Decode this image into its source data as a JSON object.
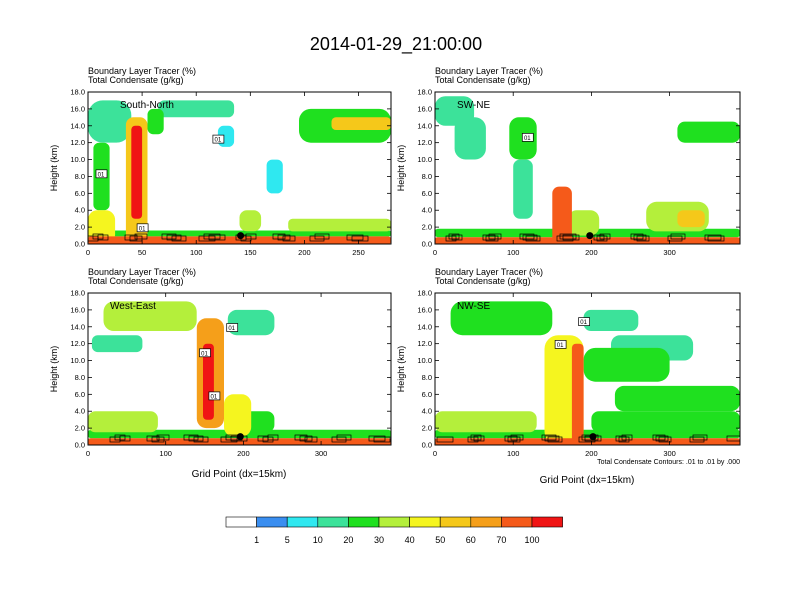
{
  "figure": {
    "title": "2014-01-29_21:00:00",
    "footnote": "Total Condensate Contours: .01 to .01 by .000"
  },
  "colors": {
    "blue": "#3a8ef0",
    "cyan": "#2fe8f0",
    "green_light": "#3ce29a",
    "green": "#1fe01f",
    "yellow_green": "#b4ef3b",
    "yellow": "#f5f51f",
    "gold": "#f5c81a",
    "orange": "#f59f1a",
    "red_orange": "#f55a1a",
    "red": "#f01414",
    "contour": "#000000",
    "marker": "#000000"
  },
  "chart_data": [
    {
      "type": "heatmap",
      "panel": "top-left",
      "label": "South-North",
      "title_line1": "Boundary Layer Tracer   (%)",
      "title_line2": "Total Condensate   (g/kg)",
      "ylabel": "Height (km)",
      "xlabel": "",
      "xlim": [
        0,
        280
      ],
      "ylim": [
        0,
        18
      ],
      "xticks": [
        0,
        50,
        100,
        150,
        200,
        250
      ],
      "xtick_labels": [
        "0",
        "50",
        "100",
        "150",
        "200",
        "250"
      ],
      "yticks": [
        0,
        2,
        4,
        6,
        8,
        10,
        12,
        14,
        16,
        18
      ],
      "ytick_labels": [
        "0.0",
        "2.0",
        "4.0",
        "6.0",
        "8.0",
        "10.0",
        "12.0",
        "14.0",
        "16.0",
        "18.0"
      ],
      "contour_labels": [
        {
          "text": "01",
          "x": 12,
          "y": 8.2
        },
        {
          "text": "01",
          "x": 50,
          "y": 1.8
        },
        {
          "text": "01",
          "x": 120,
          "y": 12.3
        }
      ],
      "marker": {
        "x": 141,
        "y": 1.0
      },
      "features": [
        {
          "x": [
            0,
            280
          ],
          "y": [
            0,
            0.9
          ],
          "value": 70
        },
        {
          "x": [
            0,
            280
          ],
          "y": [
            0.9,
            1.6
          ],
          "value": 20
        },
        {
          "x": [
            0,
            25
          ],
          "y": [
            0,
            4
          ],
          "value": 40
        },
        {
          "x": [
            5,
            20
          ],
          "y": [
            4,
            12
          ],
          "value": 20
        },
        {
          "x": [
            0,
            40
          ],
          "y": [
            12,
            17
          ],
          "value": 10
        },
        {
          "x": [
            35,
            55
          ],
          "y": [
            0,
            15
          ],
          "value": 50
        },
        {
          "x": [
            40,
            50
          ],
          "y": [
            3,
            14
          ],
          "value": 80
        },
        {
          "x": [
            55,
            70
          ],
          "y": [
            13,
            16
          ],
          "value": 20
        },
        {
          "x": [
            65,
            135
          ],
          "y": [
            15,
            17
          ],
          "value": 10
        },
        {
          "x": [
            120,
            135
          ],
          "y": [
            11.5,
            14
          ],
          "value": 5
        },
        {
          "x": [
            140,
            160
          ],
          "y": [
            1.5,
            4
          ],
          "value": 30
        },
        {
          "x": [
            165,
            180
          ],
          "y": [
            6,
            10
          ],
          "value": 5
        },
        {
          "x": [
            185,
            280
          ],
          "y": [
            1.5,
            3
          ],
          "value": 30
        },
        {
          "x": [
            195,
            280
          ],
          "y": [
            12,
            16
          ],
          "value": 20
        },
        {
          "x": [
            225,
            280
          ],
          "y": [
            13.5,
            15
          ],
          "value": 50
        }
      ]
    },
    {
      "type": "heatmap",
      "panel": "top-right",
      "label": "SW-NE",
      "title_line1": "Boundary Layer Tracer   (%)",
      "title_line2": "Total Condensate   (g/kg)",
      "ylabel": "Height (km)",
      "xlabel": "",
      "xlim": [
        0,
        390
      ],
      "ylim": [
        0,
        18
      ],
      "xticks": [
        0,
        100,
        200,
        300
      ],
      "xtick_labels": [
        "0",
        "100",
        "200",
        "300"
      ],
      "yticks": [
        0,
        2,
        4,
        6,
        8,
        10,
        12,
        14,
        16,
        18
      ],
      "ytick_labels": [
        "0.0",
        "2.0",
        "4.0",
        "6.0",
        "8.0",
        "10.0",
        "12.0",
        "14.0",
        "16.0",
        "18.0"
      ],
      "contour_labels": [
        {
          "text": "01",
          "x": 118,
          "y": 12.5
        }
      ],
      "marker": {
        "x": 198,
        "y": 1.0
      },
      "features": [
        {
          "x": [
            0,
            390
          ],
          "y": [
            0,
            0.8
          ],
          "value": 70
        },
        {
          "x": [
            0,
            390
          ],
          "y": [
            0.8,
            1.8
          ],
          "value": 20
        },
        {
          "x": [
            0,
            50
          ],
          "y": [
            14,
            17.5
          ],
          "value": 10
        },
        {
          "x": [
            25,
            65
          ],
          "y": [
            10,
            15
          ],
          "value": 10
        },
        {
          "x": [
            95,
            130
          ],
          "y": [
            10,
            15
          ],
          "value": 20
        },
        {
          "x": [
            100,
            125
          ],
          "y": [
            3,
            10
          ],
          "value": 10
        },
        {
          "x": [
            150,
            175
          ],
          "y": [
            0,
            6.8
          ],
          "value": 70
        },
        {
          "x": [
            170,
            210
          ],
          "y": [
            1,
            4
          ],
          "value": 30
        },
        {
          "x": [
            270,
            350
          ],
          "y": [
            1.5,
            5
          ],
          "value": 30
        },
        {
          "x": [
            310,
            345
          ],
          "y": [
            2,
            4
          ],
          "value": 50
        },
        {
          "x": [
            310,
            390
          ],
          "y": [
            12,
            14.5
          ],
          "value": 20
        }
      ]
    },
    {
      "type": "heatmap",
      "panel": "bottom-left",
      "label": "West-East",
      "title_line1": "Boundary Layer Tracer   (%)",
      "title_line2": "Total Condensate   (g/kg)",
      "ylabel": "Height (km)",
      "xlabel": "Grid Point (dx=15km)",
      "xlim": [
        0,
        390
      ],
      "ylim": [
        0,
        18
      ],
      "xticks": [
        0,
        100,
        200,
        300
      ],
      "xtick_labels": [
        "0",
        "100",
        "200",
        "300"
      ],
      "yticks": [
        0,
        2,
        4,
        6,
        8,
        10,
        12,
        14,
        16,
        18
      ],
      "ytick_labels": [
        "0.0",
        "2.0",
        "4.0",
        "6.0",
        "8.0",
        "10.0",
        "12.0",
        "14.0",
        "16.0",
        "18.0"
      ],
      "contour_labels": [
        {
          "text": "01",
          "x": 185,
          "y": 13.8
        },
        {
          "text": "01",
          "x": 150,
          "y": 10.8
        },
        {
          "text": "01",
          "x": 162,
          "y": 5.7
        }
      ],
      "marker": {
        "x": 196,
        "y": 1.0
      },
      "features": [
        {
          "x": [
            0,
            390
          ],
          "y": [
            0,
            0.8
          ],
          "value": 70
        },
        {
          "x": [
            0,
            390
          ],
          "y": [
            0.8,
            1.8
          ],
          "value": 20
        },
        {
          "x": [
            0,
            90
          ],
          "y": [
            1.5,
            4
          ],
          "value": 30
        },
        {
          "x": [
            20,
            140
          ],
          "y": [
            13.5,
            17
          ],
          "value": 30
        },
        {
          "x": [
            5,
            70
          ],
          "y": [
            11,
            13
          ],
          "value": 10
        },
        {
          "x": [
            140,
            175
          ],
          "y": [
            2,
            15
          ],
          "value": 60
        },
        {
          "x": [
            148,
            162
          ],
          "y": [
            3,
            12
          ],
          "value": 80
        },
        {
          "x": [
            175,
            210
          ],
          "y": [
            1,
            6
          ],
          "value": 40
        },
        {
          "x": [
            180,
            240
          ],
          "y": [
            13,
            16
          ],
          "value": 10
        },
        {
          "x": [
            185,
            240
          ],
          "y": [
            1.5,
            4
          ],
          "value": 20
        }
      ]
    },
    {
      "type": "heatmap",
      "panel": "bottom-right",
      "label": "NW-SE",
      "title_line1": "Boundary Layer Tracer   (%)",
      "title_line2": "Total Condensate   (g/kg)",
      "ylabel": "Height (km)",
      "xlabel": "Grid Point (dx=15km)",
      "xlim": [
        0,
        390
      ],
      "ylim": [
        0,
        18
      ],
      "xticks": [
        0,
        100,
        200,
        300
      ],
      "xtick_labels": [
        "0",
        "100",
        "200",
        "300"
      ],
      "yticks": [
        0,
        2,
        4,
        6,
        8,
        10,
        12,
        14,
        16,
        18
      ],
      "ytick_labels": [
        "0.0",
        "2.0",
        "4.0",
        "6.0",
        "8.0",
        "10.0",
        "12.0",
        "14.0",
        "16.0",
        "18.0"
      ],
      "contour_labels": [
        {
          "text": "01",
          "x": 190,
          "y": 14.5
        },
        {
          "text": "01",
          "x": 160,
          "y": 11.8
        }
      ],
      "marker": {
        "x": 202,
        "y": 1.0
      },
      "features": [
        {
          "x": [
            0,
            390
          ],
          "y": [
            0,
            0.8
          ],
          "value": 70
        },
        {
          "x": [
            0,
            390
          ],
          "y": [
            0.8,
            1.8
          ],
          "value": 20
        },
        {
          "x": [
            0,
            130
          ],
          "y": [
            1.5,
            4
          ],
          "value": 30
        },
        {
          "x": [
            20,
            150
          ],
          "y": [
            13,
            17
          ],
          "value": 20
        },
        {
          "x": [
            140,
            190
          ],
          "y": [
            0,
            13
          ],
          "value": 40
        },
        {
          "x": [
            175,
            190
          ],
          "y": [
            0,
            12
          ],
          "value": 70
        },
        {
          "x": [
            190,
            300
          ],
          "y": [
            7.5,
            11.5
          ],
          "value": 20
        },
        {
          "x": [
            230,
            390
          ],
          "y": [
            4,
            7
          ],
          "value": 20
        },
        {
          "x": [
            200,
            390
          ],
          "y": [
            1.5,
            4
          ],
          "value": 20
        },
        {
          "x": [
            225,
            330
          ],
          "y": [
            10,
            13
          ],
          "value": 10
        },
        {
          "x": [
            190,
            260
          ],
          "y": [
            13.5,
            16
          ],
          "value": 10
        }
      ]
    }
  ],
  "colorbar": {
    "labels": [
      "1",
      "5",
      "10",
      "20",
      "30",
      "40",
      "50",
      "60",
      "70",
      "100"
    ],
    "levels": [
      1,
      5,
      10,
      20,
      30,
      40,
      50,
      60,
      70,
      80,
      100
    ],
    "colors": [
      "#ffffff",
      "#3a8ef0",
      "#2fe8f0",
      "#3ce29a",
      "#1fe01f",
      "#b4ef3b",
      "#f5f51f",
      "#f5c81a",
      "#f59f1a",
      "#f55a1a",
      "#f01414"
    ]
  }
}
